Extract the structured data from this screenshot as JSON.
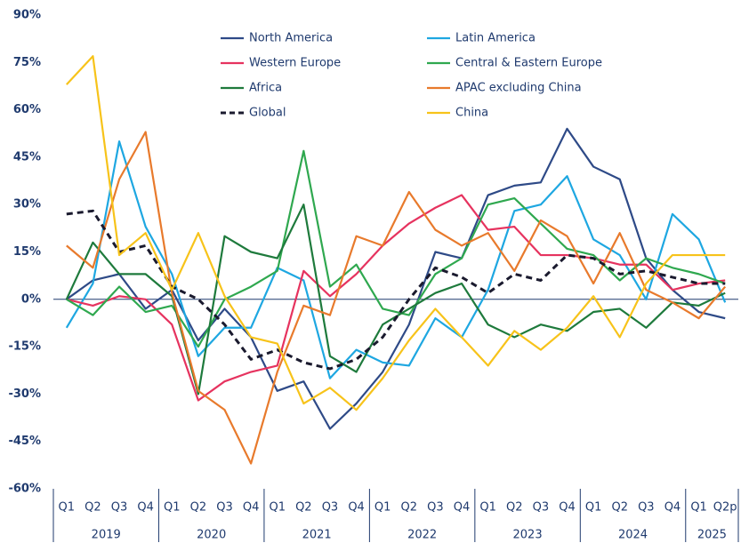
{
  "chart_data": {
    "type": "line",
    "categories": [
      "Q1",
      "Q2",
      "Q3",
      "Q4",
      "Q1",
      "Q2",
      "Q3",
      "Q4",
      "Q1",
      "Q2",
      "Q3",
      "Q4",
      "Q1",
      "Q2",
      "Q3",
      "Q4",
      "Q1",
      "Q2",
      "Q3",
      "Q4",
      "Q1",
      "Q2",
      "Q3",
      "Q4",
      "Q1",
      "Q2p"
    ],
    "years": [
      "2019",
      "2020",
      "2021",
      "2022",
      "2023",
      "2024",
      "2025"
    ],
    "ylim": [
      -60,
      90
    ],
    "yticks": [
      {
        "value": -60,
        "label": "-60%"
      },
      {
        "value": -45,
        "label": "-45%"
      },
      {
        "value": -30,
        "label": "-30%"
      },
      {
        "value": -15,
        "label": "-15%"
      },
      {
        "value": 0,
        "label": "0%"
      },
      {
        "value": 15,
        "label": "15%"
      },
      {
        "value": 30,
        "label": "30%"
      },
      {
        "value": 45,
        "label": "45%"
      },
      {
        "value": 60,
        "label": "60%"
      },
      {
        "value": 75,
        "label": "75%"
      },
      {
        "value": 90,
        "label": "90%"
      }
    ],
    "grid": false,
    "legend": "top",
    "series": [
      {
        "name": "North America",
        "color": "#2e4a87",
        "values": [
          0,
          6,
          8,
          -3,
          3,
          -13,
          -3,
          -12,
          -29,
          -26,
          -41,
          -33,
          -23,
          -8,
          15,
          13,
          33,
          36,
          37,
          54,
          42,
          38,
          13,
          3,
          -4,
          -6
        ]
      },
      {
        "name": "Latin America",
        "color": "#1ea7e1",
        "values": [
          -9,
          5,
          50,
          23,
          8,
          -18,
          -9,
          -9,
          10,
          6,
          -25,
          -16,
          -20,
          -21,
          -6,
          -12,
          3,
          28,
          30,
          39,
          19,
          14,
          0,
          27,
          19,
          -1
        ]
      },
      {
        "name": "Western Europe",
        "color": "#e6335f",
        "values": [
          0,
          -2,
          1,
          0,
          -8,
          -32,
          -26,
          -23,
          -21,
          9,
          1,
          8,
          17,
          24,
          29,
          33,
          22,
          23,
          14,
          14,
          13,
          11,
          11,
          3,
          5,
          6
        ]
      },
      {
        "name": "Central & Eastern Europe",
        "color": "#2fa84f",
        "values": [
          0,
          -5,
          4,
          -4,
          -2,
          -15,
          0,
          4,
          9,
          47,
          4,
          11,
          -3,
          -5,
          8,
          13,
          30,
          32,
          24,
          16,
          14,
          6,
          13,
          10,
          8,
          5
        ]
      },
      {
        "name": "Africa",
        "color": "#1e7a3c",
        "values": [
          0,
          18,
          8,
          8,
          1,
          -30,
          20,
          15,
          13,
          30,
          -18,
          -23,
          -8,
          -3,
          2,
          5,
          -8,
          -12,
          -8,
          -10,
          -4,
          -3,
          -9,
          -1,
          -2,
          2
        ]
      },
      {
        "name": "APAC excluding China",
        "color": "#e87a2c",
        "values": [
          17,
          10,
          38,
          53,
          2,
          -29,
          -35,
          -52,
          -23,
          -2,
          -5,
          20,
          17,
          34,
          22,
          17,
          21,
          9,
          25,
          20,
          5,
          21,
          3,
          -1,
          -6,
          4
        ]
      },
      {
        "name": "Global",
        "color": "#1a1a2e",
        "dashed": true,
        "values": [
          27,
          28,
          15,
          17,
          4,
          0,
          -8,
          -19,
          -16,
          -20,
          -22,
          -19,
          -12,
          0,
          10,
          7,
          2,
          8,
          6,
          14,
          13,
          8,
          9,
          7,
          5,
          5
        ]
      },
      {
        "name": "China",
        "color": "#f7c31a",
        "values": [
          68,
          77,
          14,
          21,
          3,
          21,
          1,
          -12,
          -14,
          -33,
          -28,
          -35,
          -25,
          -13,
          -3,
          -12,
          -21,
          -10,
          -16,
          -9,
          1,
          -12,
          5,
          14,
          14,
          14
        ]
      }
    ]
  }
}
